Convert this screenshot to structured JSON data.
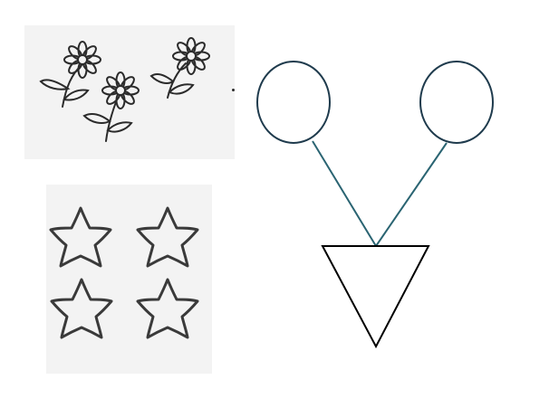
{
  "flowers": {
    "count": 3,
    "icon": "daisy-flower"
  },
  "stars": {
    "count": 4,
    "icon": "star-outline"
  },
  "diagram": {
    "circles": 2,
    "triangle": "inverted",
    "line_color": "#2a6472",
    "circle_stroke": "#1f3b4d",
    "triangle_stroke": "#000000"
  }
}
